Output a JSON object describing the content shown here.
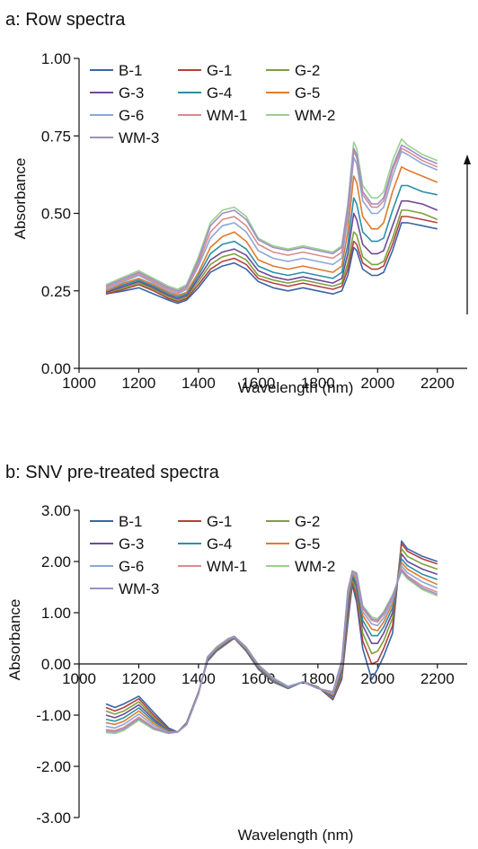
{
  "chart_data": [
    {
      "type": "line",
      "title": "a: Row spectra",
      "xlabel": "Wavelength  (nm)",
      "ylabel": "Absorbance",
      "xlim": [
        1000,
        2300
      ],
      "ylim": [
        0,
        1.0
      ],
      "xticks": [
        "1000",
        "1200",
        "1400",
        "1600",
        "1800",
        "2000",
        "2200"
      ],
      "yticks": [
        "0.00",
        "0.25",
        "0.50",
        "0.75",
        "1.00"
      ],
      "legend_position": "top-left",
      "annotation": "upward arrow at right indicating increasing absorbance",
      "x": [
        1090,
        1150,
        1200,
        1250,
        1300,
        1330,
        1360,
        1400,
        1440,
        1480,
        1520,
        1560,
        1600,
        1650,
        1700,
        1750,
        1800,
        1850,
        1880,
        1900,
        1920,
        1930,
        1950,
        1980,
        2000,
        2020,
        2050,
        2080,
        2100,
        2150,
        2200
      ],
      "series": [
        {
          "name": "B-1",
          "color": "#3a64a8",
          "values": [
            0.24,
            0.25,
            0.26,
            0.24,
            0.22,
            0.21,
            0.22,
            0.26,
            0.31,
            0.33,
            0.34,
            0.32,
            0.28,
            0.26,
            0.25,
            0.26,
            0.25,
            0.24,
            0.25,
            0.3,
            0.39,
            0.38,
            0.32,
            0.3,
            0.3,
            0.31,
            0.38,
            0.47,
            0.47,
            0.46,
            0.45
          ]
        },
        {
          "name": "G-1",
          "color": "#b2423e",
          "values": [
            0.24,
            0.255,
            0.27,
            0.25,
            0.225,
            0.215,
            0.225,
            0.27,
            0.32,
            0.345,
            0.355,
            0.335,
            0.29,
            0.275,
            0.265,
            0.275,
            0.265,
            0.255,
            0.265,
            0.32,
            0.41,
            0.4,
            0.34,
            0.32,
            0.32,
            0.33,
            0.4,
            0.49,
            0.49,
            0.48,
            0.47
          ]
        },
        {
          "name": "G-2",
          "color": "#7f9f3e",
          "values": [
            0.245,
            0.26,
            0.275,
            0.255,
            0.23,
            0.22,
            0.23,
            0.28,
            0.335,
            0.36,
            0.37,
            0.35,
            0.3,
            0.285,
            0.275,
            0.285,
            0.275,
            0.265,
            0.275,
            0.34,
            0.44,
            0.43,
            0.36,
            0.335,
            0.335,
            0.345,
            0.42,
            0.51,
            0.51,
            0.5,
            0.48
          ]
        },
        {
          "name": "G-3",
          "color": "#6e4a99",
          "values": [
            0.245,
            0.265,
            0.28,
            0.26,
            0.235,
            0.225,
            0.235,
            0.29,
            0.35,
            0.375,
            0.385,
            0.365,
            0.315,
            0.295,
            0.285,
            0.295,
            0.285,
            0.275,
            0.29,
            0.37,
            0.5,
            0.48,
            0.4,
            0.37,
            0.37,
            0.38,
            0.46,
            0.54,
            0.54,
            0.53,
            0.51
          ]
        },
        {
          "name": "G-4",
          "color": "#2d8fa6",
          "values": [
            0.25,
            0.27,
            0.285,
            0.265,
            0.24,
            0.23,
            0.24,
            0.3,
            0.37,
            0.4,
            0.41,
            0.385,
            0.33,
            0.31,
            0.3,
            0.31,
            0.3,
            0.29,
            0.31,
            0.4,
            0.55,
            0.53,
            0.44,
            0.41,
            0.41,
            0.42,
            0.51,
            0.59,
            0.59,
            0.57,
            0.56
          ]
        },
        {
          "name": "G-5",
          "color": "#e07a2e",
          "values": [
            0.25,
            0.275,
            0.29,
            0.27,
            0.245,
            0.235,
            0.245,
            0.31,
            0.39,
            0.425,
            0.44,
            0.41,
            0.35,
            0.33,
            0.32,
            0.33,
            0.32,
            0.31,
            0.33,
            0.44,
            0.62,
            0.6,
            0.49,
            0.45,
            0.45,
            0.47,
            0.57,
            0.65,
            0.64,
            0.62,
            0.6
          ]
        },
        {
          "name": "G-6",
          "color": "#8aa8d6",
          "values": [
            0.255,
            0.28,
            0.3,
            0.275,
            0.25,
            0.24,
            0.255,
            0.33,
            0.42,
            0.46,
            0.47,
            0.44,
            0.38,
            0.355,
            0.345,
            0.355,
            0.345,
            0.335,
            0.355,
            0.48,
            0.68,
            0.66,
            0.54,
            0.5,
            0.5,
            0.52,
            0.62,
            0.7,
            0.69,
            0.66,
            0.64
          ]
        },
        {
          "name": "WM-1",
          "color": "#d98b8b",
          "values": [
            0.26,
            0.285,
            0.305,
            0.28,
            0.255,
            0.245,
            0.26,
            0.34,
            0.44,
            0.48,
            0.49,
            0.46,
            0.4,
            0.375,
            0.365,
            0.375,
            0.365,
            0.355,
            0.375,
            0.5,
            0.7,
            0.68,
            0.56,
            0.52,
            0.52,
            0.54,
            0.64,
            0.71,
            0.7,
            0.67,
            0.65
          ]
        },
        {
          "name": "WM-2",
          "color": "#9ccf8e",
          "values": [
            0.27,
            0.295,
            0.315,
            0.29,
            0.265,
            0.255,
            0.27,
            0.36,
            0.47,
            0.51,
            0.52,
            0.49,
            0.42,
            0.395,
            0.385,
            0.395,
            0.385,
            0.375,
            0.395,
            0.53,
            0.73,
            0.71,
            0.59,
            0.55,
            0.55,
            0.57,
            0.67,
            0.74,
            0.72,
            0.69,
            0.67
          ]
        },
        {
          "name": "WM-3",
          "color": "#9b8fc8",
          "values": [
            0.265,
            0.29,
            0.31,
            0.285,
            0.26,
            0.25,
            0.265,
            0.35,
            0.46,
            0.5,
            0.51,
            0.48,
            0.415,
            0.39,
            0.38,
            0.39,
            0.38,
            0.37,
            0.39,
            0.52,
            0.71,
            0.69,
            0.57,
            0.53,
            0.53,
            0.55,
            0.65,
            0.72,
            0.71,
            0.68,
            0.66
          ]
        }
      ]
    },
    {
      "type": "line",
      "title": "b: SNV pre-treated spectra",
      "xlabel": "Wavelength  (nm)",
      "ylabel": "Absorbance",
      "xlim": [
        1000,
        2300
      ],
      "ylim": [
        -3.0,
        3.0
      ],
      "xticks": [
        "1000",
        "1200",
        "1400",
        "1600",
        "1800",
        "2000",
        "2200"
      ],
      "yticks": [
        "3.00",
        "2.00",
        "1.00",
        "0.00",
        "-1.00",
        "-2.00",
        "-3.00"
      ],
      "legend_position": "top-left",
      "x": [
        1090,
        1120,
        1150,
        1200,
        1250,
        1300,
        1330,
        1360,
        1400,
        1430,
        1460,
        1500,
        1520,
        1560,
        1600,
        1650,
        1700,
        1750,
        1800,
        1850,
        1880,
        1900,
        1915,
        1930,
        1950,
        1980,
        2000,
        2020,
        2050,
        2080,
        2100,
        2150,
        2200
      ],
      "series": [
        {
          "name": "B-1",
          "color": "#3a64a8",
          "values": [
            -0.78,
            -0.85,
            -0.78,
            -0.63,
            -0.95,
            -1.25,
            -1.33,
            -1.15,
            -0.55,
            0.05,
            0.25,
            0.42,
            0.5,
            0.25,
            -0.1,
            -0.35,
            -0.48,
            -0.35,
            -0.45,
            -0.7,
            -0.3,
            0.8,
            1.55,
            1.2,
            0.3,
            -0.3,
            -0.1,
            0.15,
            0.6,
            2.4,
            2.25,
            2.1,
            2.0
          ]
        },
        {
          "name": "G-1",
          "color": "#b2423e",
          "values": [
            -0.85,
            -0.92,
            -0.85,
            -0.68,
            -1.0,
            -1.28,
            -1.33,
            -1.15,
            -0.55,
            0.07,
            0.26,
            0.43,
            0.5,
            0.26,
            -0.08,
            -0.34,
            -0.47,
            -0.35,
            -0.45,
            -0.68,
            -0.25,
            0.9,
            1.6,
            1.3,
            0.45,
            0.0,
            0.05,
            0.3,
            0.75,
            2.35,
            2.2,
            2.05,
            1.95
          ]
        },
        {
          "name": "G-2",
          "color": "#7f9f3e",
          "values": [
            -0.92,
            -0.98,
            -0.92,
            -0.74,
            -1.04,
            -1.3,
            -1.33,
            -1.16,
            -0.56,
            0.08,
            0.27,
            0.44,
            0.51,
            0.27,
            -0.07,
            -0.33,
            -0.47,
            -0.35,
            -0.45,
            -0.66,
            -0.2,
            1.0,
            1.65,
            1.4,
            0.6,
            0.2,
            0.25,
            0.45,
            0.9,
            2.25,
            2.1,
            1.95,
            1.85
          ]
        },
        {
          "name": "G-3",
          "color": "#6e4a99",
          "values": [
            -1.0,
            -1.05,
            -0.98,
            -0.8,
            -1.08,
            -1.31,
            -1.33,
            -1.17,
            -0.57,
            0.09,
            0.28,
            0.45,
            0.52,
            0.28,
            -0.06,
            -0.32,
            -0.46,
            -0.35,
            -0.46,
            -0.64,
            -0.15,
            1.1,
            1.7,
            1.5,
            0.75,
            0.4,
            0.4,
            0.6,
            1.0,
            2.15,
            2.0,
            1.85,
            1.75
          ]
        },
        {
          "name": "G-4",
          "color": "#2d8fa6",
          "values": [
            -1.08,
            -1.12,
            -1.05,
            -0.86,
            -1.12,
            -1.32,
            -1.33,
            -1.17,
            -0.57,
            0.1,
            0.29,
            0.46,
            0.52,
            0.29,
            -0.05,
            -0.31,
            -0.46,
            -0.35,
            -0.46,
            -0.62,
            -0.1,
            1.2,
            1.73,
            1.58,
            0.85,
            0.55,
            0.55,
            0.72,
            1.1,
            2.05,
            1.92,
            1.75,
            1.65
          ]
        },
        {
          "name": "G-5",
          "color": "#e07a2e",
          "values": [
            -1.15,
            -1.18,
            -1.12,
            -0.92,
            -1.16,
            -1.33,
            -1.33,
            -1.18,
            -0.58,
            0.11,
            0.3,
            0.47,
            0.53,
            0.3,
            -0.04,
            -0.3,
            -0.45,
            -0.35,
            -0.47,
            -0.6,
            -0.05,
            1.28,
            1.76,
            1.65,
            0.95,
            0.68,
            0.65,
            0.82,
            1.18,
            1.98,
            1.85,
            1.68,
            1.55
          ]
        },
        {
          "name": "G-6",
          "color": "#8aa8d6",
          "values": [
            -1.22,
            -1.25,
            -1.18,
            -0.98,
            -1.2,
            -1.34,
            -1.33,
            -1.18,
            -0.58,
            0.12,
            0.31,
            0.48,
            0.53,
            0.31,
            -0.03,
            -0.29,
            -0.45,
            -0.35,
            -0.47,
            -0.58,
            0.0,
            1.35,
            1.78,
            1.7,
            1.02,
            0.78,
            0.75,
            0.9,
            1.25,
            1.92,
            1.78,
            1.6,
            1.48
          ]
        },
        {
          "name": "WM-1",
          "color": "#d98b8b",
          "values": [
            -1.28,
            -1.3,
            -1.24,
            -1.04,
            -1.24,
            -1.35,
            -1.33,
            -1.19,
            -0.59,
            0.13,
            0.32,
            0.49,
            0.54,
            0.32,
            -0.02,
            -0.28,
            -0.44,
            -0.35,
            -0.48,
            -0.56,
            0.04,
            1.4,
            1.8,
            1.74,
            1.08,
            0.85,
            0.82,
            0.97,
            1.3,
            1.86,
            1.72,
            1.52,
            1.4
          ]
        },
        {
          "name": "WM-2",
          "color": "#9ccf8e",
          "values": [
            -1.34,
            -1.36,
            -1.3,
            -1.1,
            -1.28,
            -1.36,
            -1.33,
            -1.19,
            -0.59,
            0.14,
            0.33,
            0.5,
            0.54,
            0.33,
            -0.01,
            -0.27,
            -0.44,
            -0.35,
            -0.48,
            -0.54,
            0.08,
            1.45,
            1.82,
            1.78,
            1.14,
            0.92,
            0.88,
            1.02,
            1.35,
            1.8,
            1.66,
            1.45,
            1.33
          ]
        },
        {
          "name": "WM-3",
          "color": "#9b8fc8",
          "values": [
            -1.31,
            -1.33,
            -1.27,
            -1.07,
            -1.26,
            -1.35,
            -1.33,
            -1.19,
            -0.59,
            0.13,
            0.32,
            0.49,
            0.54,
            0.32,
            -0.02,
            -0.28,
            -0.44,
            -0.35,
            -0.48,
            -0.55,
            0.06,
            1.42,
            1.81,
            1.76,
            1.11,
            0.88,
            0.85,
            1.0,
            1.32,
            1.83,
            1.69,
            1.48,
            1.36
          ]
        }
      ]
    }
  ]
}
